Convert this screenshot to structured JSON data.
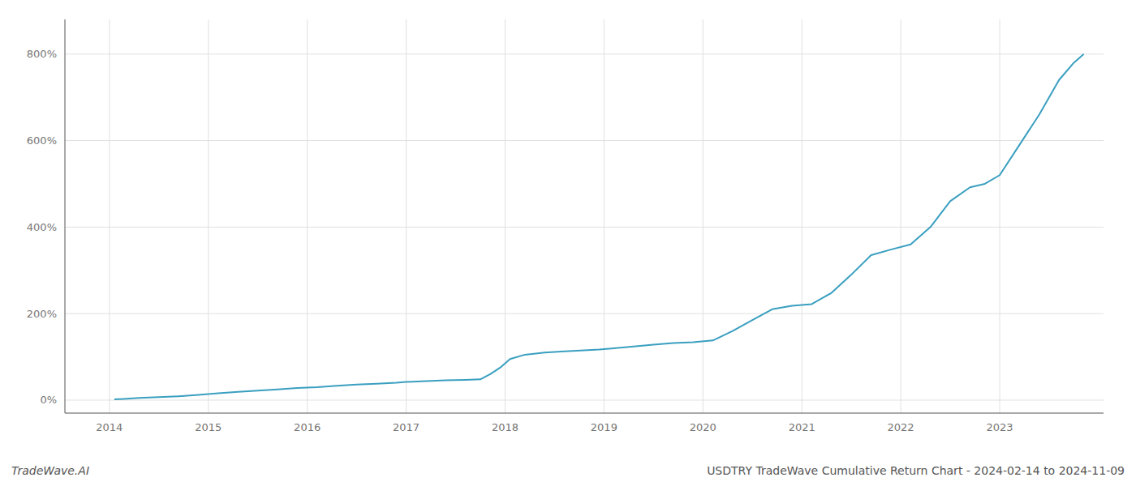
{
  "chart_data": {
    "type": "line",
    "title": "USDTRY TradeWave Cumulative Return Chart - 2024-02-14 to 2024-11-09",
    "annotations": [
      "TradeWave.AI"
    ],
    "color": "#3a9fc0",
    "grid": true,
    "x": [
      2014.05,
      2014.15,
      2014.3,
      2014.5,
      2014.7,
      2014.9,
      2015.1,
      2015.3,
      2015.5,
      2015.7,
      2015.9,
      2016.1,
      2016.3,
      2016.5,
      2016.7,
      2016.9,
      2017.0,
      2017.2,
      2017.4,
      2017.6,
      2017.75,
      2017.85,
      2017.95,
      2018.05,
      2018.2,
      2018.4,
      2018.6,
      2018.8,
      2018.95,
      2019.1,
      2019.3,
      2019.5,
      2019.7,
      2019.9,
      2020.1,
      2020.3,
      2020.5,
      2020.7,
      2020.9,
      2021.1,
      2021.3,
      2021.5,
      2021.7,
      2021.9,
      2022.1,
      2022.3,
      2022.5,
      2022.7,
      2022.85,
      2023.0,
      2023.2,
      2023.4,
      2023.6,
      2023.75,
      2023.85
    ],
    "values": [
      2,
      3,
      5,
      7,
      9,
      12,
      16,
      19,
      22,
      25,
      28,
      30,
      33,
      36,
      38,
      40,
      42,
      44,
      46,
      47,
      48,
      60,
      75,
      95,
      105,
      110,
      113,
      115,
      117,
      120,
      124,
      128,
      132,
      134,
      138,
      160,
      185,
      210,
      218,
      222,
      248,
      290,
      335,
      348,
      360,
      400,
      460,
      492,
      500,
      520,
      590,
      660,
      740,
      780,
      800
    ],
    "xlim": [
      2013.55,
      2024.05
    ],
    "xticks": [
      2014,
      2015,
      2016,
      2017,
      2018,
      2019,
      2020,
      2021,
      2022,
      2023
    ],
    "ylim": [
      -30,
      880
    ],
    "yticks": [
      {
        "value": 0,
        "label": "0%"
      },
      {
        "value": 200,
        "label": "200%"
      },
      {
        "value": 400,
        "label": "400%"
      },
      {
        "value": 600,
        "label": "600%"
      },
      {
        "value": 800,
        "label": "800%"
      }
    ]
  }
}
